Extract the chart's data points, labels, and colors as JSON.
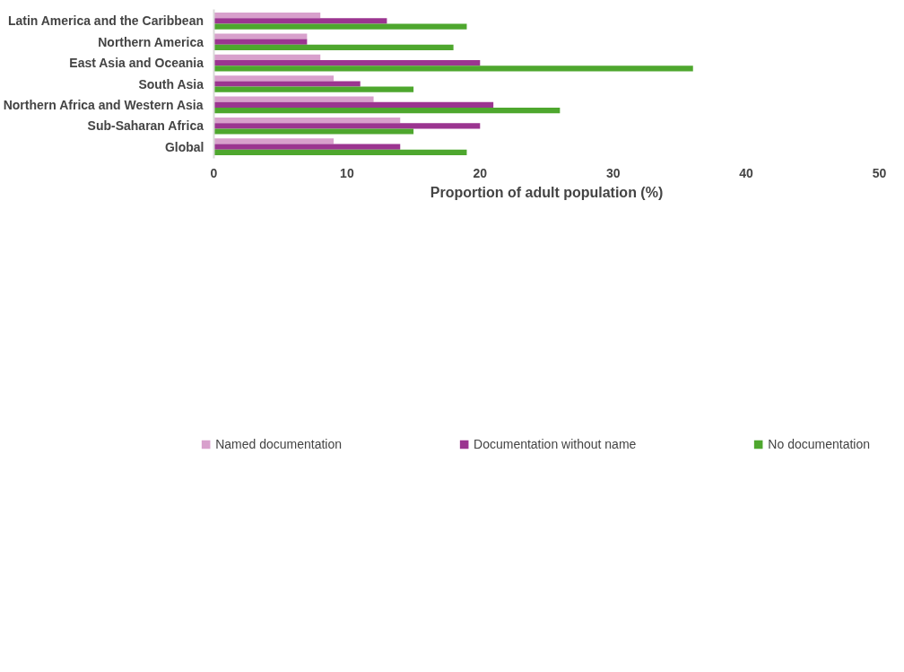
{
  "chart_data": {
    "type": "bar",
    "orientation": "horizontal",
    "xlabel": "Proportion of adult population (%)",
    "categories": [
      "Latin America and the Caribbean",
      "Northern America",
      "East Asia and Oceania",
      "South Asia",
      "Northern Africa and Western Asia",
      "Sub-Saharan Africa",
      "Global"
    ],
    "series": [
      {
        "name": "Named documentation",
        "color": "#d8a0cc",
        "values": [
          8,
          7,
          8,
          9,
          12,
          14,
          9
        ]
      },
      {
        "name": "Documentation without name",
        "color": "#9b3590",
        "values": [
          13,
          7,
          20,
          11,
          21,
          20,
          14
        ]
      },
      {
        "name": "No documentation",
        "color": "#4ea72e",
        "values": [
          19,
          18,
          36,
          15,
          26,
          15,
          19
        ]
      }
    ],
    "xlim": [
      0,
      50
    ],
    "xticks": [
      0,
      10,
      20,
      30,
      40,
      50
    ],
    "grid": false,
    "legend": "bottom"
  }
}
